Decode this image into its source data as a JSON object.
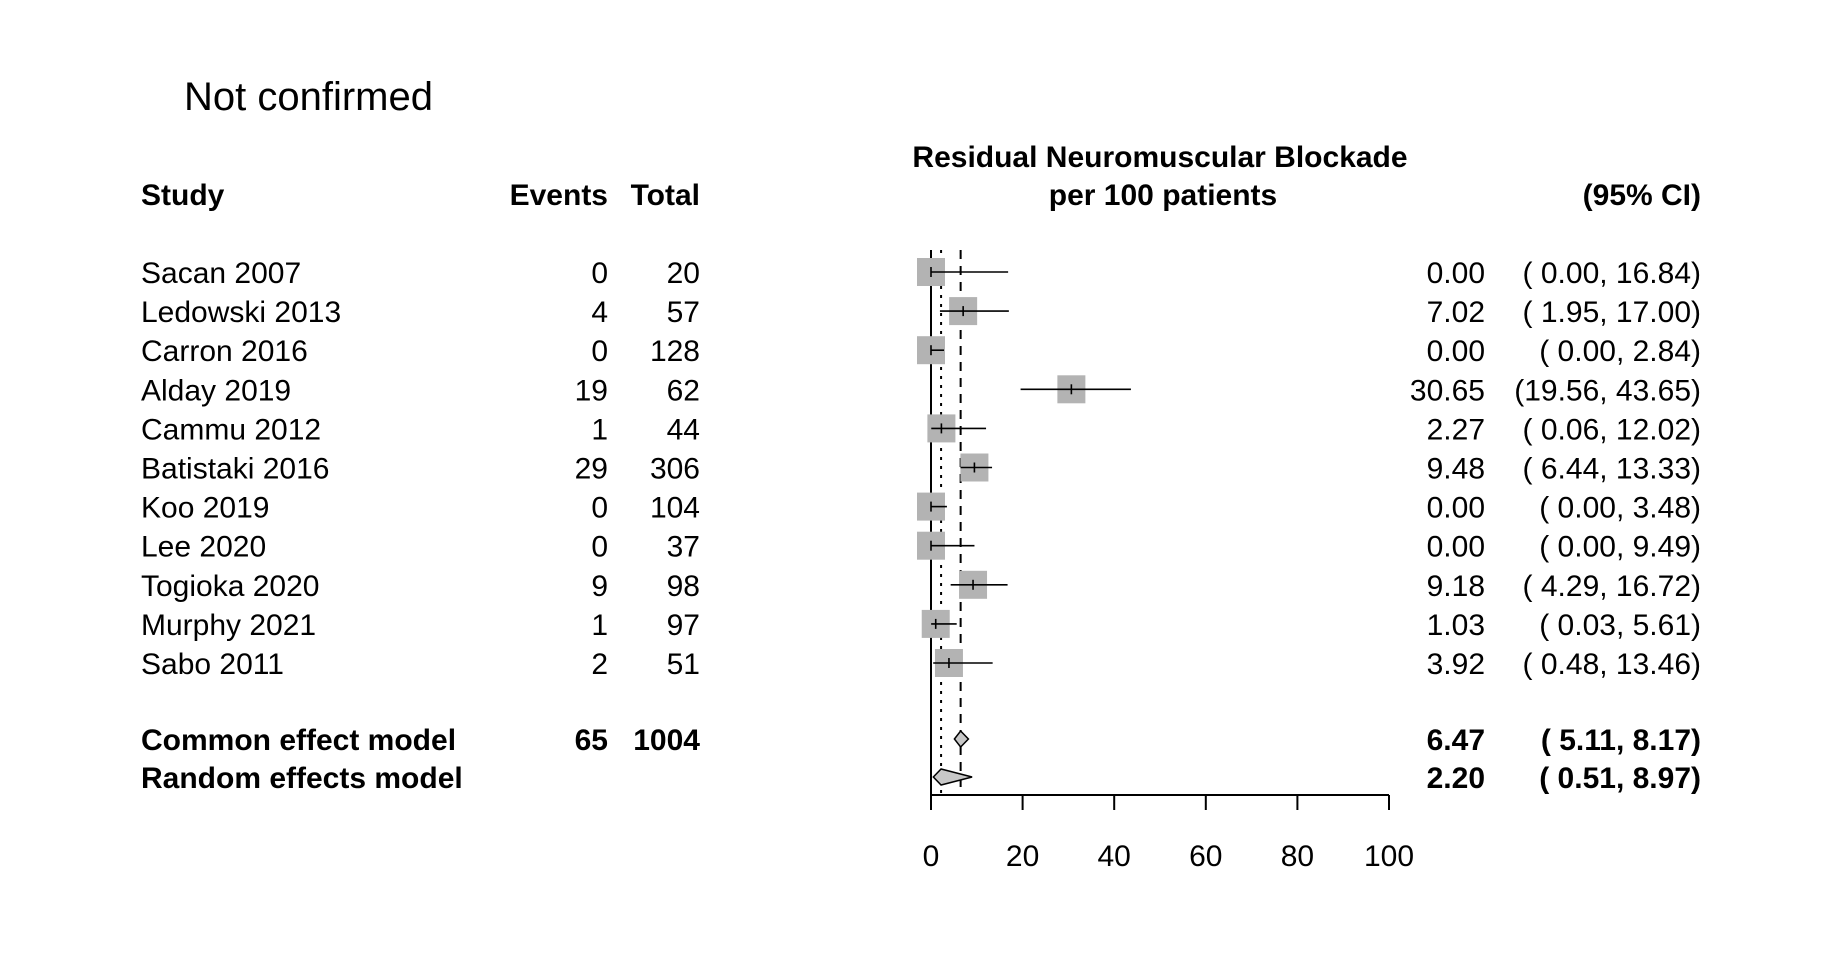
{
  "panel_title": "Not confirmed",
  "headers": {
    "study": "Study",
    "events": "Events",
    "total": "Total",
    "plot_title_line1": "Residual Neuromuscular Blockade",
    "plot_title_line2": "per 100 patients",
    "ci": "(95% CI)"
  },
  "chart_data": {
    "type": "forest",
    "x_axis": {
      "ticks": [
        "0",
        "20",
        "40",
        "60",
        "80",
        "100"
      ],
      "tick_values": [
        0,
        20,
        40,
        60,
        80,
        100
      ],
      "xlim": [
        0,
        100
      ]
    },
    "reference_lines": {
      "common_effect": 6.47,
      "random_effects": 2.2,
      "solid_at": 0
    },
    "studies": [
      {
        "study": "Sacan 2007",
        "events": "0",
        "total": "20",
        "est": 0.0,
        "lo": 0.0,
        "hi": 16.84,
        "est_text": "0.00",
        "ci_text": "( 0.00, 16.84)"
      },
      {
        "study": "Ledowski 2013",
        "events": "4",
        "total": "57",
        "est": 7.02,
        "lo": 1.95,
        "hi": 17.0,
        "est_text": "7.02",
        "ci_text": "( 1.95, 17.00)"
      },
      {
        "study": "Carron 2016",
        "events": "0",
        "total": "128",
        "est": 0.0,
        "lo": 0.0,
        "hi": 2.84,
        "est_text": "0.00",
        "ci_text": "( 0.00,  2.84)"
      },
      {
        "study": "Alday 2019",
        "events": "19",
        "total": "62",
        "est": 30.65,
        "lo": 19.56,
        "hi": 43.65,
        "est_text": "30.65",
        "ci_text": "(19.56, 43.65)"
      },
      {
        "study": "Cammu 2012",
        "events": "1",
        "total": "44",
        "est": 2.27,
        "lo": 0.06,
        "hi": 12.02,
        "est_text": "2.27",
        "ci_text": "( 0.06, 12.02)"
      },
      {
        "study": "Batistaki 2016",
        "events": "29",
        "total": "306",
        "est": 9.48,
        "lo": 6.44,
        "hi": 13.33,
        "est_text": "9.48",
        "ci_text": "( 6.44, 13.33)"
      },
      {
        "study": "Koo 2019",
        "events": "0",
        "total": "104",
        "est": 0.0,
        "lo": 0.0,
        "hi": 3.48,
        "est_text": "0.00",
        "ci_text": "( 0.00,  3.48)"
      },
      {
        "study": "Lee 2020",
        "events": "0",
        "total": "37",
        "est": 0.0,
        "lo": 0.0,
        "hi": 9.49,
        "est_text": "0.00",
        "ci_text": "( 0.00,  9.49)"
      },
      {
        "study": "Togioka 2020",
        "events": "9",
        "total": "98",
        "est": 9.18,
        "lo": 4.29,
        "hi": 16.72,
        "est_text": "9.18",
        "ci_text": "( 4.29, 16.72)"
      },
      {
        "study": "Murphy 2021",
        "events": "1",
        "total": "97",
        "est": 1.03,
        "lo": 0.03,
        "hi": 5.61,
        "est_text": "1.03",
        "ci_text": "( 0.03,  5.61)"
      },
      {
        "study": "Sabo 2011",
        "events": "2",
        "total": "51",
        "est": 3.92,
        "lo": 0.48,
        "hi": 13.46,
        "est_text": "3.92",
        "ci_text": "( 0.48, 13.46)"
      }
    ],
    "summaries": [
      {
        "label": "Common effect model",
        "events": "65",
        "total": "1004",
        "est": 6.47,
        "lo": 5.11,
        "hi": 8.17,
        "est_text": "6.47",
        "ci_text": "( 5.11,  8.17)"
      },
      {
        "label": "Random effects model",
        "events": "",
        "total": "",
        "est": 2.2,
        "lo": 0.51,
        "hi": 8.97,
        "est_text": "2.20",
        "ci_text": "( 0.51,  8.97)"
      }
    ],
    "colors": {
      "box": "#b3b3b3",
      "diamond": "#c8c8c8",
      "line": "#000000"
    }
  }
}
